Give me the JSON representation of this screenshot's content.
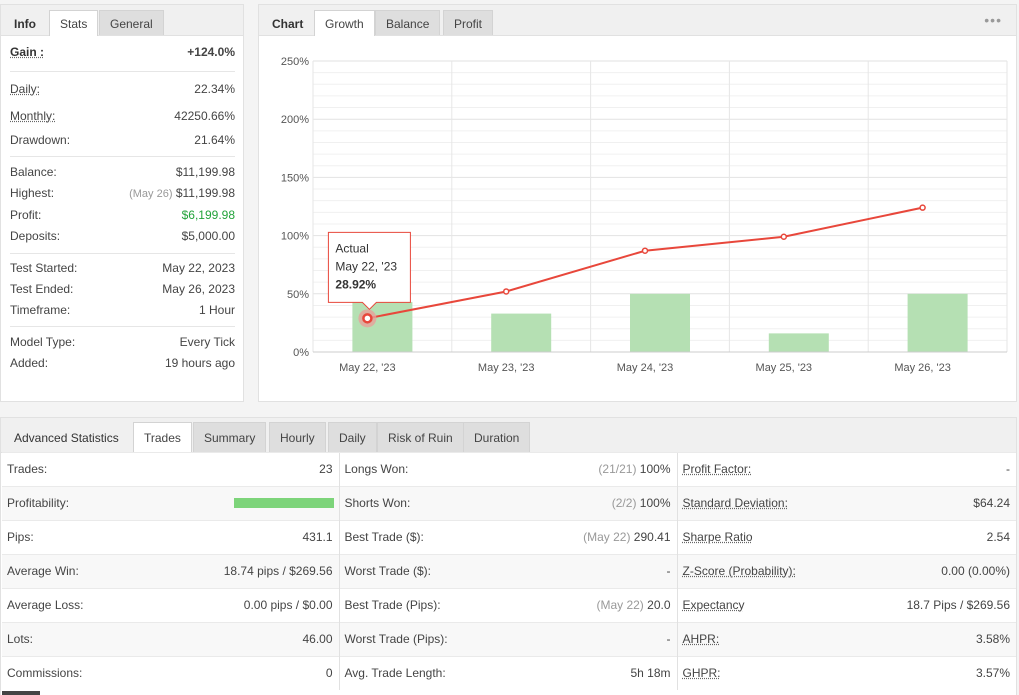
{
  "info_panel": {
    "tabs": [
      "Info",
      "Stats",
      "General"
    ],
    "gain": {
      "label": "Gain :",
      "value": "+124.0%"
    },
    "stats": [
      {
        "label": "Daily:",
        "value": "22.34%"
      },
      {
        "label": "Monthly:",
        "value": "42250.66%"
      },
      {
        "label": "Drawdown:",
        "value": "21.64%"
      }
    ],
    "balance": [
      {
        "label": "Balance:",
        "value": "$11,199.98"
      },
      {
        "label": "Highest:",
        "sub": "(May 26)",
        "value": "$11,199.98"
      },
      {
        "label": "Profit:",
        "value": "$6,199.98"
      },
      {
        "label": "Deposits:",
        "value": "$5,000.00"
      }
    ],
    "test": [
      {
        "label": "Test Started:",
        "value": "May 22, 2023"
      },
      {
        "label": "Test Ended:",
        "value": "May 26, 2023"
      },
      {
        "label": "Timeframe:",
        "value": "1 Hour"
      }
    ],
    "model": [
      {
        "label": "Model Type:",
        "value": "Every Tick"
      },
      {
        "label": "Added:",
        "value": "19 hours ago"
      }
    ]
  },
  "chart_panel": {
    "tabs": [
      "Chart",
      "Growth",
      "Balance",
      "Profit"
    ],
    "menu_icon": "ellipsis-icon",
    "tooltip": {
      "title": "Actual",
      "date": "May 22, '23",
      "value": "28.92%"
    }
  },
  "chart_data": {
    "type": "bar+line",
    "categories": [
      "May 22, '23",
      "May 23, '23",
      "May 24, '23",
      "May 25, '23",
      "May 26, '23"
    ],
    "series": [
      {
        "type": "bar",
        "values": [
          43,
          33,
          50,
          16,
          50
        ],
        "color": "#b5e0b3"
      },
      {
        "type": "line",
        "values": [
          28.92,
          52,
          87,
          99,
          124
        ],
        "color": "#e8473b"
      }
    ],
    "ylim": [
      0,
      250
    ],
    "yticks": [
      "0%",
      "50%",
      "100%",
      "150%",
      "200%",
      "250%"
    ],
    "grid": true
  },
  "advanced": {
    "tabs": [
      "Advanced Statistics",
      "Trades",
      "Summary",
      "Hourly",
      "Daily",
      "Risk of Ruin",
      "Duration"
    ],
    "rows": [
      [
        {
          "label": "Trades:",
          "value": "23"
        },
        {
          "label": "Longs Won:",
          "sub": "(21/21)",
          "value": "100%"
        },
        {
          "label": "Profit Factor:",
          "value": "-"
        }
      ],
      [
        {
          "label": "Profitability:",
          "value": ""
        },
        {
          "label": "Shorts Won:",
          "sub": "(2/2)",
          "value": "100%"
        },
        {
          "label": "Standard Deviation:",
          "value": "$64.24"
        }
      ],
      [
        {
          "label": "Pips:",
          "value": "431.1"
        },
        {
          "label": "Best Trade ($):",
          "sub": "(May 22)",
          "value": "290.41"
        },
        {
          "label": "Sharpe Ratio",
          "value": "2.54"
        }
      ],
      [
        {
          "label": "Average Win:",
          "value": "18.74 pips / $269.56"
        },
        {
          "label": "Worst Trade ($):",
          "value": "-"
        },
        {
          "label": "Z-Score (Probability):",
          "value": "0.00 (0.00%)"
        }
      ],
      [
        {
          "label": "Average Loss:",
          "value": "0.00 pips / $0.00"
        },
        {
          "label": "Best Trade (Pips):",
          "sub": "(May 22)",
          "value": "20.0"
        },
        {
          "label": "Expectancy",
          "value": "18.7 Pips / $269.56"
        }
      ],
      [
        {
          "label": "Lots:",
          "value": "46.00"
        },
        {
          "label": "Worst Trade (Pips):",
          "value": "-"
        },
        {
          "label": "AHPR:",
          "value": "3.58%"
        }
      ],
      [
        {
          "label": "Commissions:",
          "value": "0"
        },
        {
          "label": "Avg. Trade Length:",
          "value": "5h 18m"
        },
        {
          "label": "GHPR:",
          "value": "3.57%"
        }
      ]
    ],
    "profitability_fraction": 1.0
  }
}
